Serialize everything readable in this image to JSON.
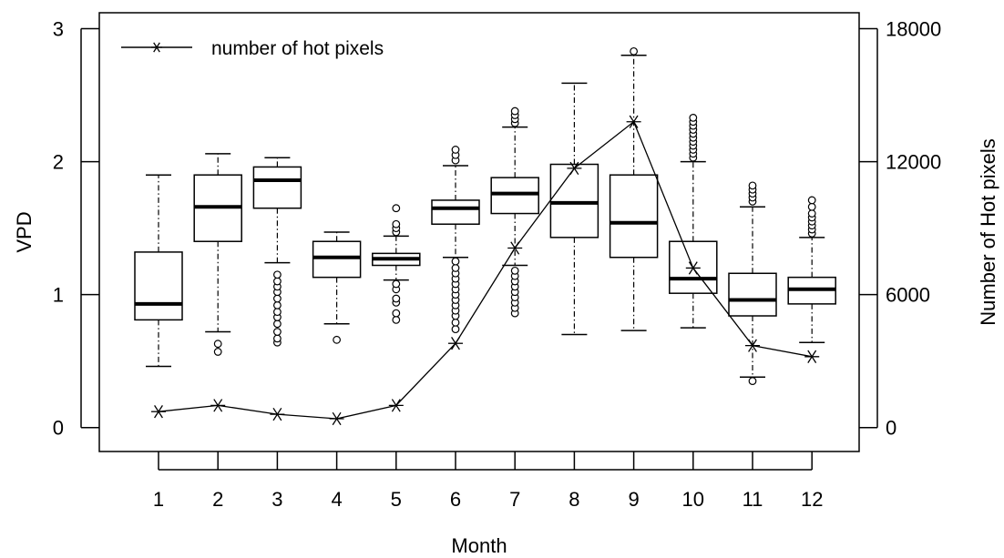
{
  "chart_data": {
    "type": "box",
    "xlabel": "Month",
    "ylabel": "VPD",
    "y2label": "Number of Hot pixels",
    "categories": [
      "1",
      "2",
      "3",
      "4",
      "5",
      "6",
      "7",
      "8",
      "9",
      "10",
      "11",
      "12"
    ],
    "ylim": [
      -0.18,
      3.12
    ],
    "yticks": [
      "0",
      "1",
      "2",
      "3"
    ],
    "y2lim": [
      -1080,
      18720
    ],
    "y2ticks": [
      "0",
      "6000",
      "12000",
      "18000"
    ],
    "legend": {
      "placement": "top-left",
      "label": "number of hot pixels"
    },
    "boxes": [
      {
        "month": "1",
        "min": 0.46,
        "q1": 0.81,
        "median": 0.93,
        "q3": 1.32,
        "max": 1.9,
        "outliers": []
      },
      {
        "month": "2",
        "min": 0.72,
        "q1": 1.4,
        "median": 1.66,
        "q3": 1.9,
        "max": 2.06,
        "outliers": [
          0.57,
          0.63
        ]
      },
      {
        "month": "3",
        "min": 1.24,
        "q1": 1.65,
        "median": 1.86,
        "q3": 1.96,
        "max": 2.03,
        "outliers": [
          0.64,
          0.67,
          0.72,
          0.78,
          0.83,
          0.87,
          0.92,
          0.97,
          1.02,
          1.06,
          1.1,
          1.15
        ]
      },
      {
        "month": "4",
        "min": 0.78,
        "q1": 1.13,
        "median": 1.28,
        "q3": 1.4,
        "max": 1.47,
        "outliers": [
          0.66
        ]
      },
      {
        "month": "5",
        "min": 1.11,
        "q1": 1.22,
        "median": 1.27,
        "q3": 1.31,
        "max": 1.44,
        "outliers": [
          0.81,
          0.86,
          0.94,
          0.97,
          1.04,
          1.08,
          1.47,
          1.5,
          1.53,
          1.65
        ]
      },
      {
        "month": "6",
        "min": 1.28,
        "q1": 1.53,
        "median": 1.65,
        "q3": 1.71,
        "max": 1.97,
        "outliers": [
          0.74,
          0.79,
          0.84,
          0.88,
          0.92,
          0.96,
          1.0,
          1.04,
          1.08,
          1.12,
          1.16,
          1.2,
          1.25,
          2.01,
          2.05,
          2.09
        ]
      },
      {
        "month": "7",
        "min": 1.22,
        "q1": 1.61,
        "median": 1.76,
        "q3": 1.88,
        "max": 2.26,
        "outliers": [
          0.86,
          0.9,
          0.94,
          0.98,
          1.02,
          1.06,
          1.1,
          1.14,
          1.18,
          2.29,
          2.32,
          2.35,
          2.38
        ]
      },
      {
        "month": "8",
        "min": 0.7,
        "q1": 1.43,
        "median": 1.69,
        "q3": 1.98,
        "max": 2.59,
        "outliers": []
      },
      {
        "month": "9",
        "min": 0.73,
        "q1": 1.28,
        "median": 1.54,
        "q3": 1.9,
        "max": 2.8,
        "outliers": [
          2.83
        ]
      },
      {
        "month": "10",
        "min": 0.75,
        "q1": 1.01,
        "median": 1.12,
        "q3": 1.4,
        "max": 2.0,
        "outliers": [
          2.03,
          2.06,
          2.09,
          2.12,
          2.15,
          2.18,
          2.21,
          2.24,
          2.27,
          2.3,
          2.33
        ]
      },
      {
        "month": "11",
        "min": 0.38,
        "q1": 0.84,
        "median": 0.96,
        "q3": 1.16,
        "max": 1.66,
        "outliers": [
          0.35,
          1.7,
          1.73,
          1.76,
          1.79,
          1.82
        ]
      },
      {
        "month": "12",
        "min": 0.64,
        "q1": 0.93,
        "median": 1.04,
        "q3": 1.13,
        "max": 1.43,
        "outliers": [
          1.46,
          1.49,
          1.52,
          1.55,
          1.58,
          1.61,
          1.66,
          1.71
        ]
      }
    ],
    "hot_pixels": {
      "name": "number of hot pixels",
      "x": [
        "1",
        "2",
        "3",
        "4",
        "5",
        "6",
        "7",
        "8",
        "9",
        "10",
        "11",
        "12"
      ],
      "values": [
        720,
        1000,
        600,
        400,
        1000,
        3800,
        8100,
        11700,
        13800,
        7200,
        3700,
        3200
      ]
    }
  }
}
